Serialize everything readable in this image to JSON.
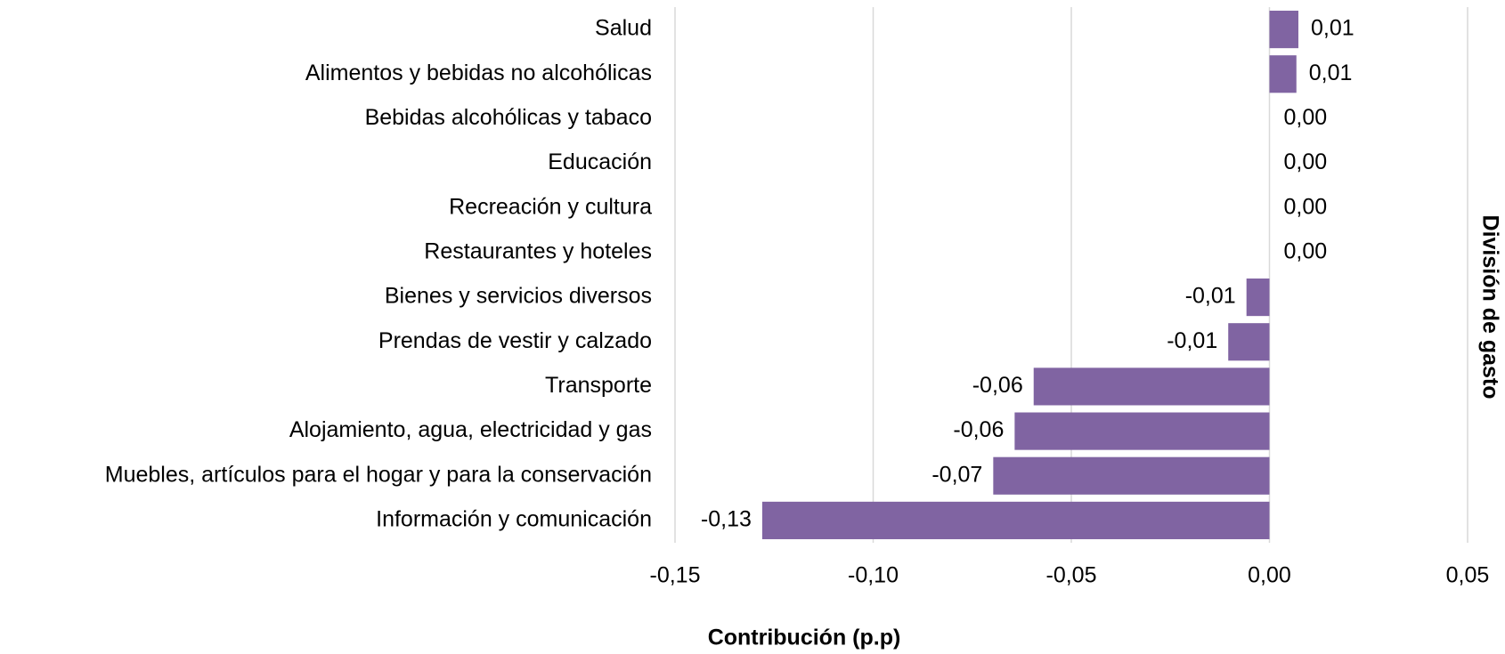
{
  "chart_data": {
    "type": "bar",
    "orientation": "horizontal",
    "x_label": "Contribución (p.p)",
    "y_label": "División de gasto",
    "categories": [
      "Salud",
      "Alimentos y bebidas no alcohólicas",
      "Bebidas alcohólicas y tabaco",
      "Educación",
      "Recreación y cultura",
      "Restaurantes y hoteles",
      "Bienes y servicios diversos",
      "Prendas de vestir y calzado",
      "Transporte",
      "Alojamiento, agua, electricidad y gas",
      "Muebles, artículos para el hogar y para la conservación",
      "Información y comunicación"
    ],
    "values": [
      0.0073,
      0.0068,
      0,
      0,
      0,
      0,
      -0.0058,
      -0.0104,
      -0.0595,
      -0.0643,
      -0.0697,
      -0.128
    ],
    "value_labels": [
      "0,01",
      "0,01",
      "0,00",
      "0,00",
      "0,00",
      "0,00",
      "-0,01",
      "-0,01",
      "-0,06",
      "-0,06",
      "-0,07",
      "-0,13"
    ],
    "color": "#8064a2",
    "xlim": [
      -0.15,
      0.05
    ],
    "xticks": [
      {
        "value": -0.15,
        "label": "-0,15"
      },
      {
        "value": -0.1,
        "label": "-0,10"
      },
      {
        "value": -0.05,
        "label": "-0,05"
      },
      {
        "value": 0,
        "label": "0,00"
      },
      {
        "value": 0.05,
        "label": "0,05"
      }
    ],
    "grid": true
  }
}
